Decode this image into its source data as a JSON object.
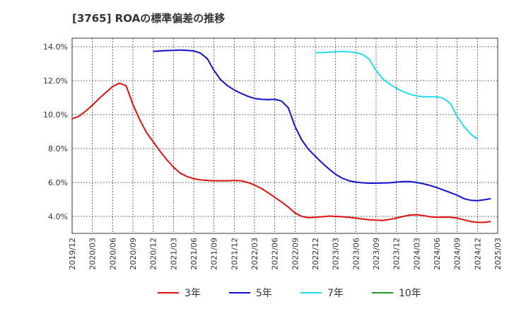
{
  "chart_data": {
    "type": "line",
    "title": "[3765]  ROAの標準偏差の推移",
    "xlabel": "",
    "ylabel": "",
    "ylim": [
      3.0,
      14.5
    ],
    "grid": true,
    "x_ticks": [
      "2019/12",
      "2020/03",
      "2020/06",
      "2020/09",
      "2020/12",
      "2021/03",
      "2021/06",
      "2021/09",
      "2021/12",
      "2022/03",
      "2022/06",
      "2022/09",
      "2022/12",
      "2023/03",
      "2023/06",
      "2023/09",
      "2023/12",
      "2024/03",
      "2024/06",
      "2024/09",
      "2024/12",
      "2025/03"
    ],
    "y_ticks": [
      4.0,
      6.0,
      8.0,
      10.0,
      12.0,
      14.0
    ],
    "y_tick_labels": [
      "4.0%",
      "6.0%",
      "8.0%",
      "10.0%",
      "12.0%",
      "14.0%"
    ],
    "legend_position": "bottom",
    "series": [
      {
        "name": "3年",
        "color": "#dd1111",
        "start_month": 0,
        "values": [
          9.75,
          9.9,
          10.2,
          10.55,
          10.95,
          11.3,
          11.65,
          11.85,
          11.7,
          10.6,
          9.7,
          8.95,
          8.4,
          7.85,
          7.35,
          6.9,
          6.55,
          6.35,
          6.22,
          6.15,
          6.12,
          6.1,
          6.1,
          6.1,
          6.12,
          6.1,
          6.0,
          5.85,
          5.65,
          5.4,
          5.12,
          4.85,
          4.55,
          4.2,
          4.0,
          3.92,
          3.95,
          3.98,
          4.02,
          4.0,
          3.98,
          3.95,
          3.9,
          3.85,
          3.8,
          3.78,
          3.76,
          3.82,
          3.9,
          4.0,
          4.08,
          4.1,
          4.05,
          3.98,
          3.95,
          3.96,
          3.95,
          3.9,
          3.8,
          3.7,
          3.65,
          3.65,
          3.7
        ]
      },
      {
        "name": "5年",
        "color": "#1111cc",
        "start_month": 12,
        "values": [
          13.72,
          13.75,
          13.77,
          13.78,
          13.8,
          13.78,
          13.75,
          13.62,
          13.3,
          12.6,
          12.05,
          11.7,
          11.45,
          11.25,
          11.08,
          10.95,
          10.9,
          10.88,
          10.9,
          10.8,
          10.4,
          9.3,
          8.5,
          7.95,
          7.55,
          7.15,
          6.8,
          6.48,
          6.25,
          6.1,
          6.02,
          5.98,
          5.96,
          5.96,
          5.97,
          5.98,
          6.02,
          6.05,
          6.05,
          6.0,
          5.92,
          5.82,
          5.7,
          5.55,
          5.4,
          5.25,
          5.05,
          4.95,
          4.93,
          4.98,
          5.05
        ]
      },
      {
        "name": "7年",
        "color": "#22ddee",
        "start_month": 36,
        "values": [
          13.65,
          13.65,
          13.68,
          13.7,
          13.72,
          13.7,
          13.65,
          13.55,
          13.25,
          12.6,
          12.1,
          11.8,
          11.55,
          11.35,
          11.2,
          11.1,
          11.05,
          11.05,
          11.05,
          10.95,
          10.65,
          9.9,
          9.3,
          8.85,
          8.55
        ]
      },
      {
        "name": "10年",
        "color": "#229922",
        "start_month": null,
        "values": []
      }
    ]
  }
}
